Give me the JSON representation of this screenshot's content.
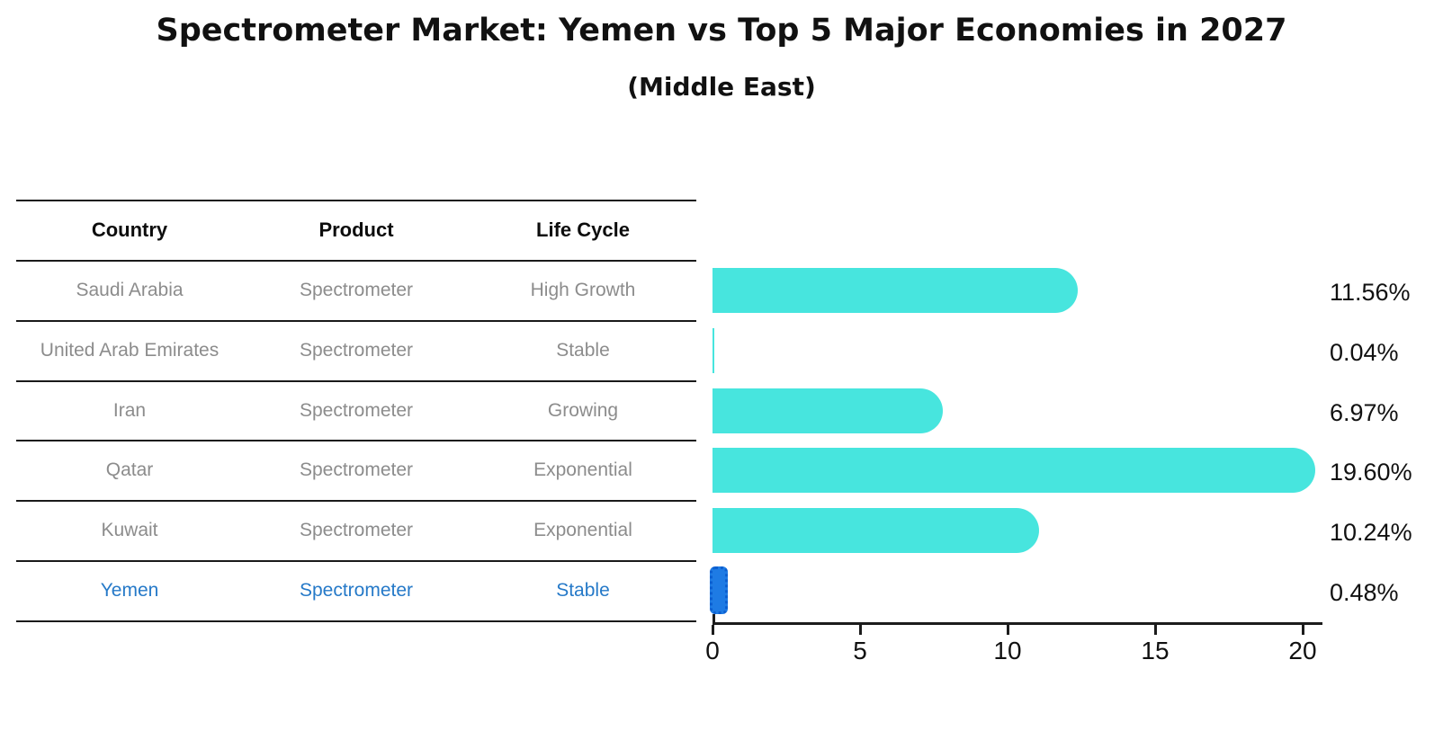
{
  "title": "Spectrometer Market: Yemen vs Top 5 Major Economies in 2027",
  "subtitle": "(Middle East)",
  "table": {
    "headers": [
      "Country",
      "Product",
      "Life Cycle"
    ],
    "rows": [
      {
        "country": "Saudi Arabia",
        "product": "Spectrometer",
        "life_cycle": "High Growth",
        "highlight": false
      },
      {
        "country": "United Arab Emirates",
        "product": "Spectrometer",
        "life_cycle": "Stable",
        "highlight": false
      },
      {
        "country": "Iran",
        "product": "Spectrometer",
        "life_cycle": "Growing",
        "highlight": false
      },
      {
        "country": "Qatar",
        "product": "Spectrometer",
        "life_cycle": "Exponential",
        "highlight": false
      },
      {
        "country": "Kuwait",
        "product": "Spectrometer",
        "life_cycle": "Exponential",
        "highlight": false
      },
      {
        "country": "Yemen",
        "product": "Spectrometer",
        "life_cycle": "Stable",
        "highlight": true
      }
    ]
  },
  "chart_data": {
    "type": "bar",
    "orientation": "horizontal",
    "title": "Spectrometer Market: Yemen vs Top 5 Major Economies in 2027",
    "subtitle": "(Middle East)",
    "categories": [
      "Saudi Arabia",
      "United Arab Emirates",
      "Iran",
      "Qatar",
      "Kuwait",
      "Yemen"
    ],
    "values": [
      11.56,
      0.04,
      6.97,
      19.6,
      10.24,
      0.48
    ],
    "value_labels": [
      "11.56%",
      "0.04%",
      "6.97%",
      "19.60%",
      "10.24%",
      "0.48%"
    ],
    "xlim": [
      0,
      20.6
    ],
    "xticks": [
      0,
      5,
      10,
      15,
      20
    ],
    "xtick_labels": [
      "0",
      "5",
      "10",
      "15",
      "20"
    ],
    "grid": false,
    "legend": "none",
    "highlight_index": 5,
    "bar_color": "#47e5de",
    "highlight_bar_color": "#1e7be4",
    "highlight_text_color": "#2579c8",
    "table_text_color": "#8c8c8c",
    "axis_color": "#1c1c1c"
  }
}
